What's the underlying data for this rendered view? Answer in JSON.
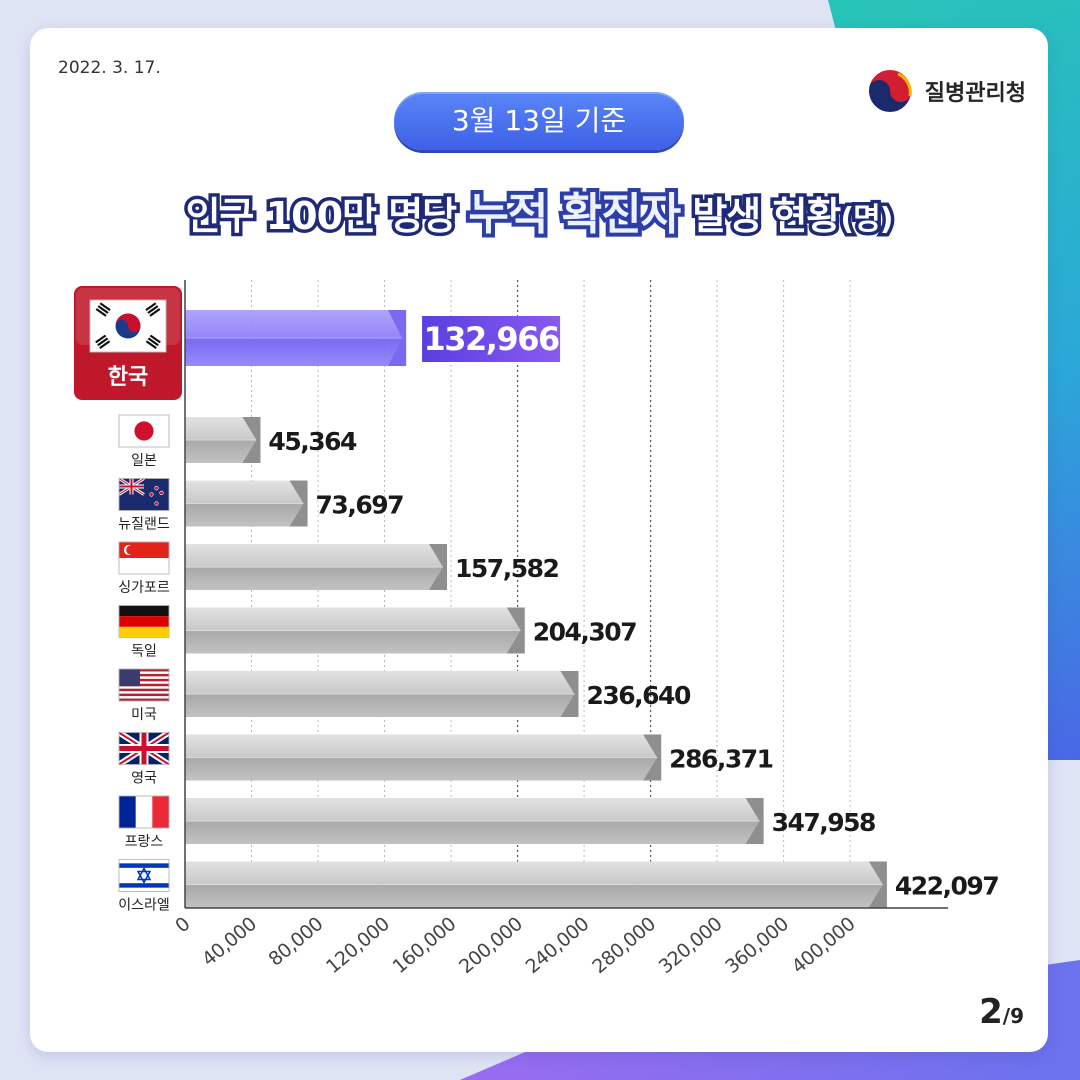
{
  "header": {
    "date": "2022. 3. 17.",
    "agency": "질병관리청",
    "pill": "3월 13일 기준",
    "title_part1": "인구 100만 명당 ",
    "title_highlight": "누적 확진자",
    "title_part2": " 발생 현황",
    "title_unit": "(명)"
  },
  "page": {
    "current": "2",
    "total": "/9"
  },
  "colors": {
    "highlight": "#6b5cf0",
    "bar": "#bcbcbc",
    "accent": "#3d60e6",
    "korea_label": "#c0182b"
  },
  "chart_data": {
    "type": "bar",
    "orientation": "horizontal",
    "categories": [
      "한국",
      "일본",
      "뉴질랜드",
      "싱가포르",
      "독일",
      "미국",
      "영국",
      "프랑스",
      "이스라엘"
    ],
    "values": [
      132966,
      45364,
      73697,
      157582,
      204307,
      236640,
      286371,
      347958,
      422097
    ],
    "value_labels": [
      "132,966",
      "45,364",
      "73,697",
      "157,582",
      "204,307",
      "236,640",
      "286,371",
      "347,958",
      "422,097"
    ],
    "flags": [
      "korea-flag",
      "japan-flag",
      "new-zealand-flag",
      "singapore-flag",
      "germany-flag",
      "usa-flag",
      "uk-flag",
      "france-flag",
      "israel-flag"
    ],
    "highlight_index": 0,
    "x_ticks": [
      0,
      40000,
      80000,
      120000,
      160000,
      200000,
      240000,
      280000,
      320000,
      360000,
      400000
    ],
    "x_tick_labels": [
      "0",
      "40,000",
      "80,000",
      "120,000",
      "160,000",
      "200,000",
      "240,000",
      "280,000",
      "320,000",
      "360,000",
      "400,000"
    ],
    "xlim": [
      0,
      430000
    ],
    "grid": true,
    "title": "인구 100만 명당 누적 확진자 발생 현황(명)"
  }
}
